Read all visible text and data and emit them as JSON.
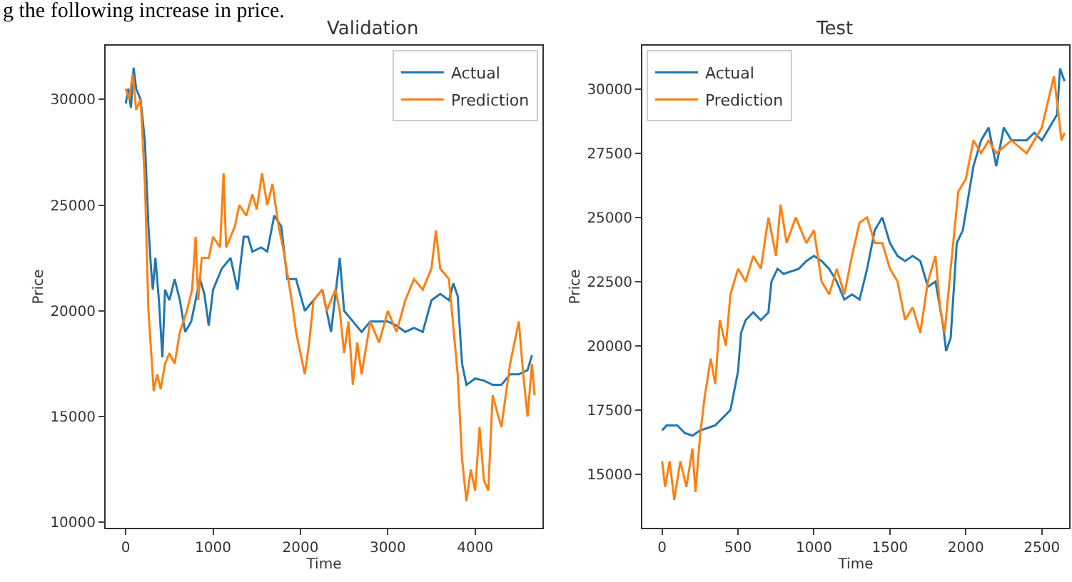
{
  "chart_data": [
    {
      "type": "line",
      "title": "Validation",
      "xlabel": "Time",
      "ylabel": "Price",
      "annotations": [
        "g the following increase in price."
      ],
      "xlim": [
        -230,
        4770
      ],
      "ylim": [
        9730,
        32550
      ],
      "xticks": [
        0,
        1000,
        2000,
        3000,
        4000
      ],
      "yticks": [
        10000,
        15000,
        20000,
        25000,
        30000
      ],
      "legend": "top right",
      "series": [
        {
          "name": "Actual",
          "color": "#1f77b4",
          "x": [
            0,
            30,
            60,
            90,
            120,
            170,
            220,
            260,
            290,
            310,
            340,
            380,
            420,
            450,
            500,
            560,
            620,
            680,
            750,
            800,
            850,
            900,
            950,
            1000,
            1100,
            1200,
            1280,
            1350,
            1400,
            1450,
            1550,
            1620,
            1700,
            1780,
            1850,
            1950,
            2050,
            2150,
            2250,
            2350,
            2450,
            2500,
            2600,
            2700,
            2800,
            2900,
            3000,
            3100,
            3200,
            3300,
            3400,
            3500,
            3600,
            3700,
            3750,
            3800,
            3850,
            3900,
            4000,
            4100,
            4200,
            4300,
            4400,
            4500,
            4600,
            4650
          ],
          "values": [
            29800,
            30500,
            29600,
            31500,
            30500,
            30000,
            28000,
            24000,
            22000,
            21000,
            22500,
            20500,
            17800,
            21000,
            20500,
            21500,
            20500,
            19000,
            19500,
            20500,
            21500,
            20800,
            19300,
            21000,
            22000,
            22500,
            21000,
            23500,
            23500,
            22800,
            23000,
            22800,
            24500,
            24000,
            21500,
            21500,
            20000,
            20500,
            21000,
            19000,
            22500,
            20000,
            19500,
            19000,
            19500,
            19500,
            19500,
            19300,
            19000,
            19200,
            19000,
            20500,
            20800,
            20500,
            21300,
            20700,
            17500,
            16500,
            16800,
            16700,
            16500,
            16500,
            17000,
            17000,
            17200,
            17900
          ]
        },
        {
          "name": "Prediction",
          "color": "#ff7f0e",
          "x": [
            0,
            40,
            80,
            120,
            170,
            220,
            260,
            300,
            320,
            360,
            400,
            450,
            500,
            560,
            620,
            700,
            760,
            800,
            830,
            870,
            950,
            1000,
            1080,
            1120,
            1150,
            1250,
            1300,
            1380,
            1450,
            1500,
            1560,
            1620,
            1680,
            1750,
            1800,
            1900,
            1950,
            2000,
            2050,
            2100,
            2150,
            2250,
            2300,
            2400,
            2450,
            2500,
            2550,
            2600,
            2650,
            2700,
            2800,
            2900,
            3000,
            3100,
            3200,
            3300,
            3400,
            3500,
            3550,
            3600,
            3700,
            3800,
            3850,
            3900,
            3950,
            4000,
            4050,
            4100,
            4150,
            4200,
            4300,
            4400,
            4500,
            4550,
            4600,
            4650,
            4680
          ],
          "values": [
            30500,
            30000,
            31200,
            29500,
            30000,
            26000,
            20000,
            17500,
            16200,
            17000,
            16300,
            17500,
            18000,
            17500,
            19000,
            20000,
            21000,
            23500,
            20500,
            22500,
            22500,
            23500,
            23000,
            26500,
            23000,
            24000,
            25000,
            24500,
            25500,
            24800,
            26500,
            25000,
            26000,
            24000,
            23000,
            20500,
            19000,
            18000,
            17000,
            18500,
            20500,
            21000,
            20000,
            21000,
            20000,
            18000,
            19500,
            16500,
            18500,
            17000,
            19500,
            18500,
            20000,
            19000,
            20500,
            21500,
            21000,
            22000,
            23800,
            22000,
            21500,
            17000,
            13000,
            11000,
            12500,
            11500,
            14500,
            12000,
            11500,
            16000,
            14500,
            17500,
            19500,
            17000,
            15000,
            17500,
            16000
          ]
        }
      ]
    },
    {
      "type": "line",
      "title": "Test",
      "xlabel": "Time",
      "ylabel": "Price",
      "xlim": [
        -130,
        2680
      ],
      "ylim": [
        12900,
        31700
      ],
      "xticks": [
        0,
        500,
        1000,
        1500,
        2000,
        2500
      ],
      "yticks": [
        15000,
        17500,
        20000,
        22500,
        25000,
        27500,
        30000
      ],
      "legend": "top left",
      "series": [
        {
          "name": "Actual",
          "color": "#1f77b4",
          "x": [
            0,
            30,
            100,
            150,
            200,
            250,
            300,
            350,
            400,
            450,
            500,
            520,
            550,
            600,
            650,
            700,
            720,
            760,
            800,
            900,
            950,
            1000,
            1050,
            1100,
            1150,
            1200,
            1250,
            1300,
            1350,
            1400,
            1450,
            1500,
            1550,
            1600,
            1650,
            1700,
            1750,
            1800,
            1850,
            1870,
            1900,
            1940,
            1980,
            2050,
            2100,
            2150,
            2200,
            2250,
            2300,
            2400,
            2450,
            2500,
            2550,
            2600,
            2620,
            2650
          ],
          "values": [
            16700,
            16900,
            16900,
            16600,
            16500,
            16700,
            16800,
            16900,
            17200,
            17500,
            19000,
            20500,
            21000,
            21300,
            21000,
            21300,
            22500,
            23000,
            22800,
            23000,
            23300,
            23500,
            23300,
            23000,
            22500,
            21800,
            22000,
            21800,
            23000,
            24500,
            25000,
            24000,
            23500,
            23300,
            23500,
            23300,
            22300,
            22500,
            20800,
            19800,
            20300,
            24000,
            24500,
            27000,
            28000,
            28500,
            27000,
            28500,
            28000,
            28000,
            28300,
            28000,
            28500,
            29000,
            30800,
            30300
          ]
        },
        {
          "name": "Prediction",
          "color": "#ff7f0e",
          "x": [
            0,
            20,
            50,
            80,
            120,
            160,
            200,
            220,
            250,
            280,
            320,
            350,
            380,
            420,
            450,
            500,
            550,
            600,
            650,
            700,
            750,
            780,
            820,
            880,
            950,
            1000,
            1050,
            1100,
            1150,
            1200,
            1250,
            1300,
            1350,
            1400,
            1450,
            1500,
            1550,
            1600,
            1650,
            1700,
            1750,
            1800,
            1830,
            1860,
            1900,
            1950,
            2000,
            2050,
            2100,
            2150,
            2200,
            2300,
            2400,
            2500,
            2580,
            2600,
            2630,
            2650
          ],
          "values": [
            15500,
            14500,
            15500,
            14000,
            15500,
            14500,
            16000,
            14300,
            16500,
            18000,
            19500,
            18500,
            21000,
            20000,
            22000,
            23000,
            22500,
            23500,
            23000,
            25000,
            23500,
            25500,
            24000,
            25000,
            24000,
            24500,
            22500,
            22000,
            23000,
            22000,
            23500,
            24800,
            25000,
            24000,
            24000,
            23000,
            22500,
            21000,
            21500,
            20500,
            22500,
            23500,
            21500,
            20500,
            23000,
            26000,
            26500,
            28000,
            27500,
            28000,
            27500,
            28000,
            27500,
            28500,
            30500,
            29500,
            28000,
            28300
          ]
        }
      ]
    }
  ]
}
